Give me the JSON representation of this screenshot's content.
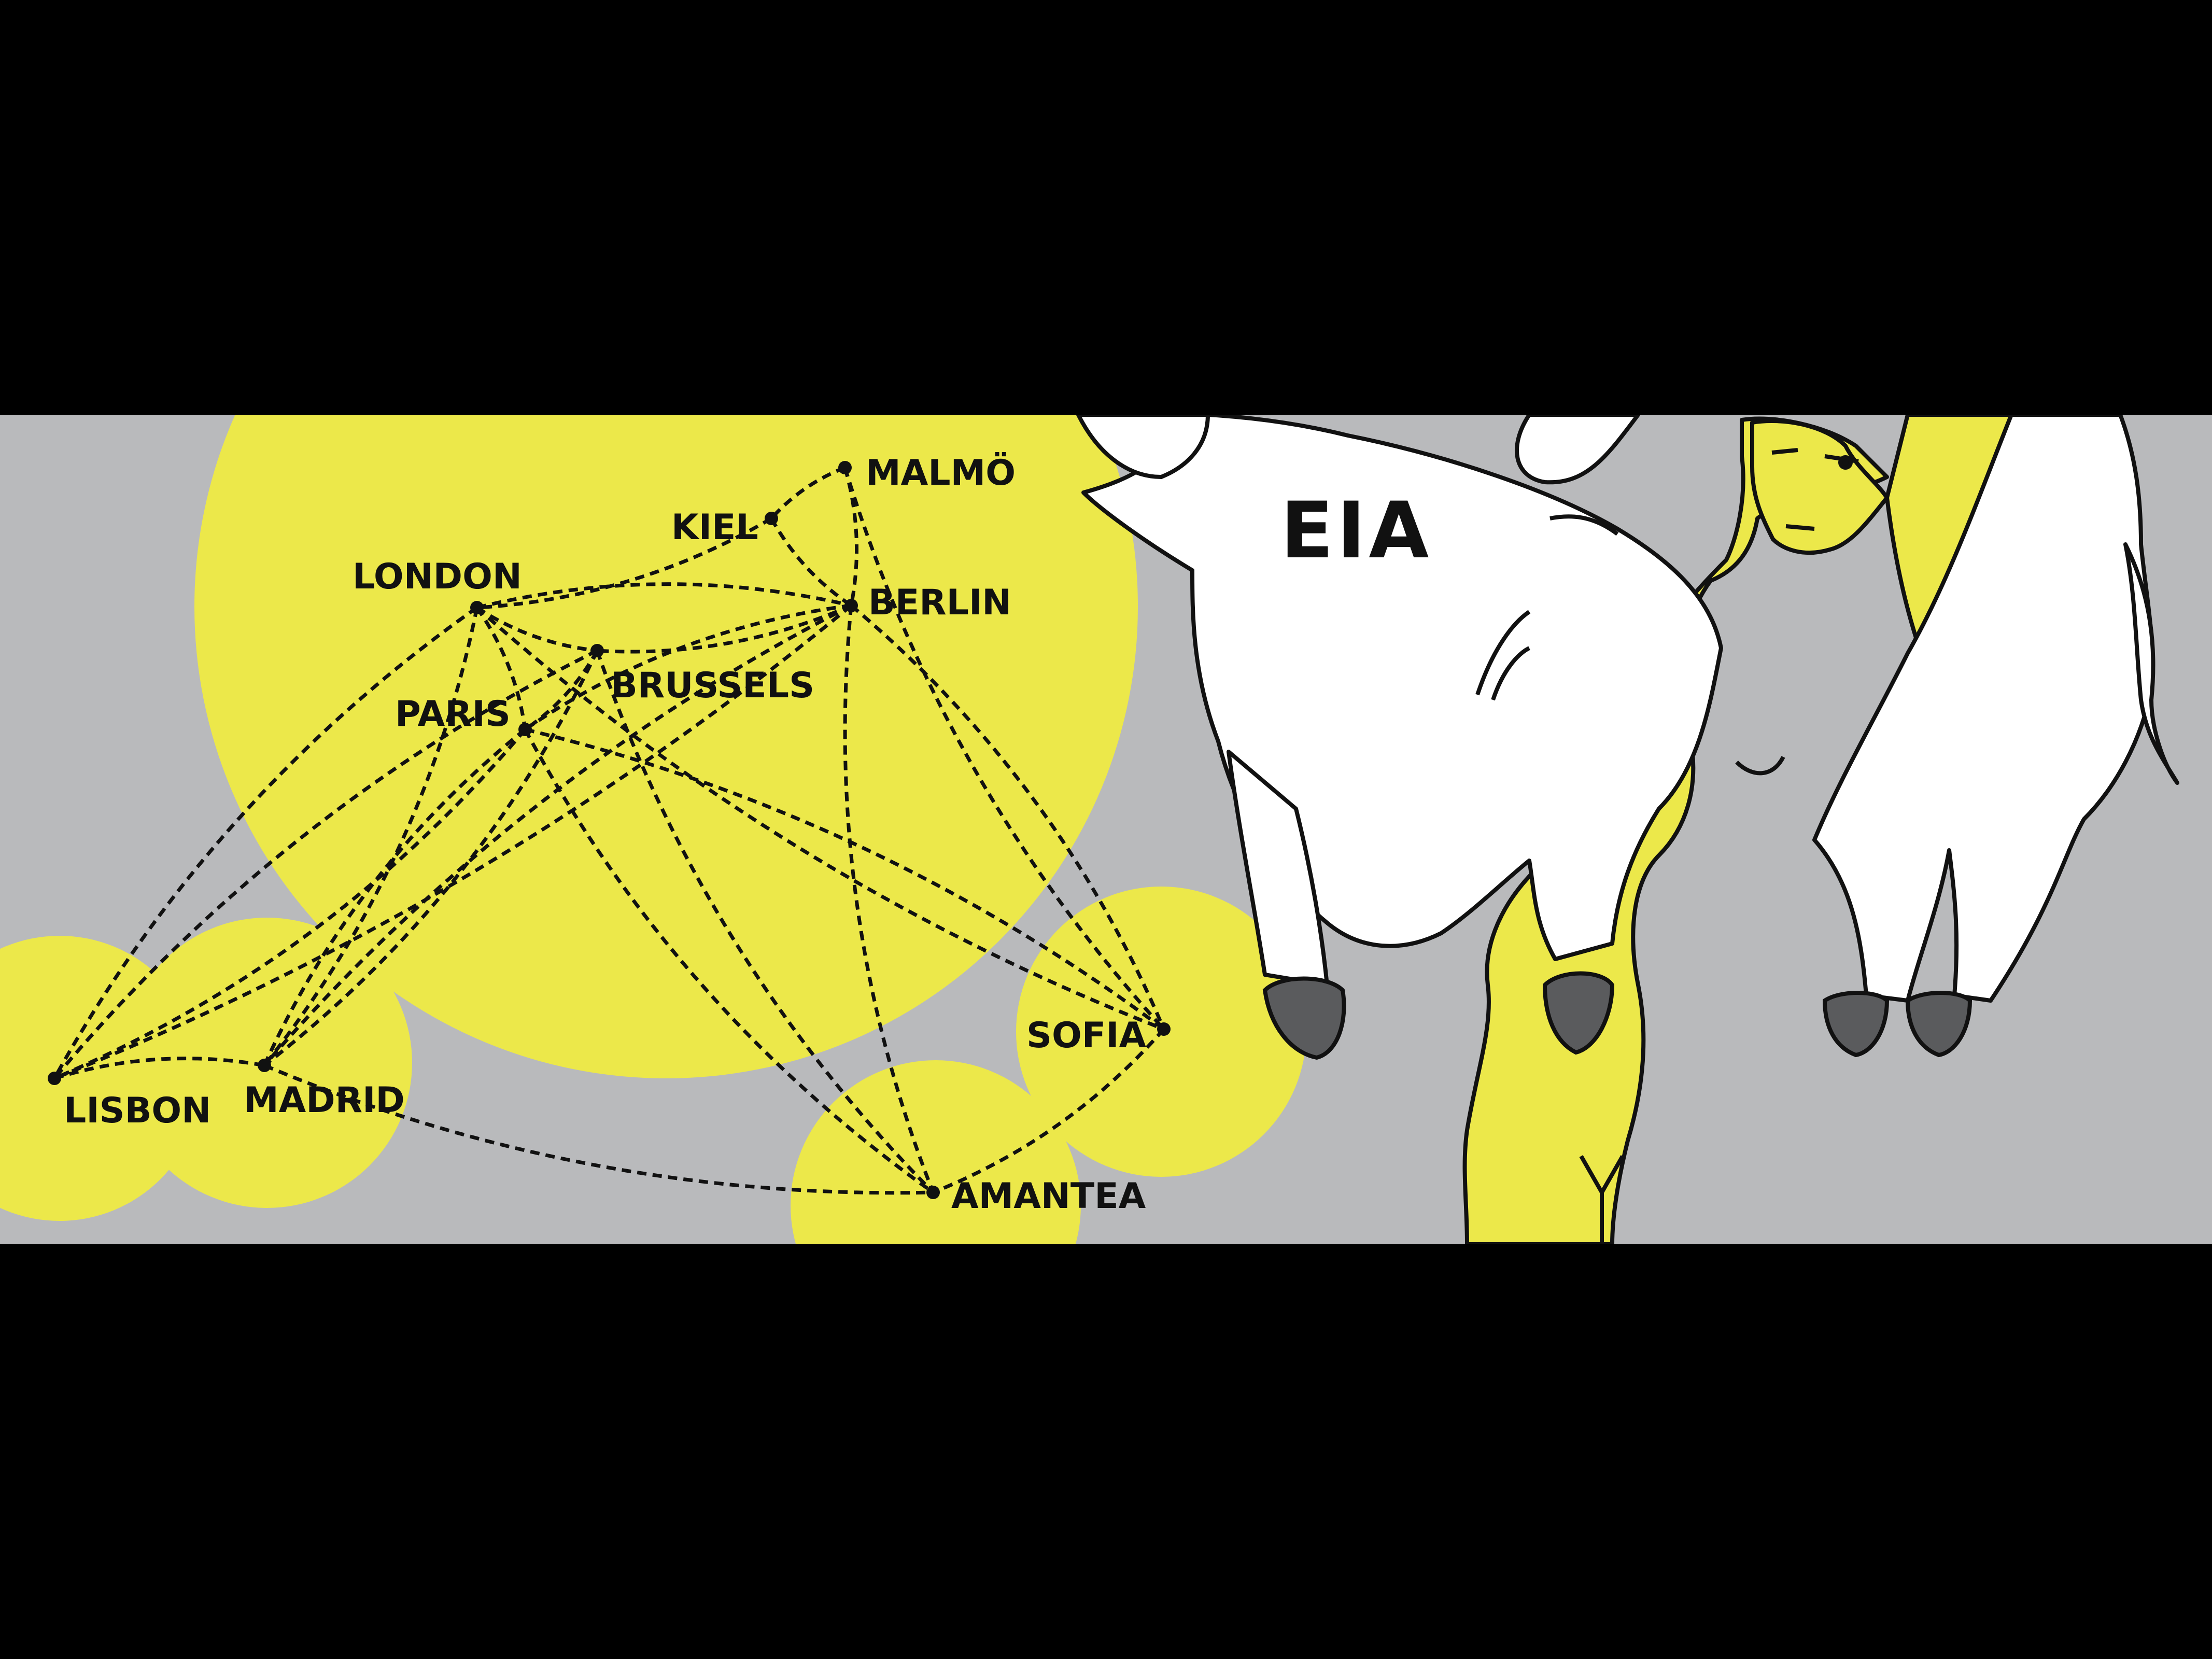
{
  "colors": {
    "background": "#000000",
    "panel": "#b9babc",
    "highlight": "#ece84a",
    "ink": "#111111",
    "bull": "#ffffff",
    "hoof": "#5a5b5d"
  },
  "stamp_text": "EIA",
  "cities": [
    {
      "id": "malmo",
      "name": "MALMÖ"
    },
    {
      "id": "kiel",
      "name": "KIEL"
    },
    {
      "id": "london",
      "name": "LONDON"
    },
    {
      "id": "berlin",
      "name": "BERLIN"
    },
    {
      "id": "brussels",
      "name": "BRUSSELS"
    },
    {
      "id": "paris",
      "name": "PARIS"
    },
    {
      "id": "sofia",
      "name": "SOFIA"
    },
    {
      "id": "lisbon",
      "name": "LISBON"
    },
    {
      "id": "madrid",
      "name": "MADRID"
    },
    {
      "id": "amantea",
      "name": "AMANTEA"
    }
  ],
  "routes": [
    [
      "malmo",
      "kiel"
    ],
    [
      "malmo",
      "berlin"
    ],
    [
      "malmo",
      "sofia"
    ],
    [
      "kiel",
      "london"
    ],
    [
      "kiel",
      "berlin"
    ],
    [
      "london",
      "berlin"
    ],
    [
      "london",
      "brussels"
    ],
    [
      "london",
      "paris"
    ],
    [
      "london",
      "lisbon"
    ],
    [
      "london",
      "madrid"
    ],
    [
      "london",
      "sofia"
    ],
    [
      "berlin",
      "brussels"
    ],
    [
      "berlin",
      "paris"
    ],
    [
      "berlin",
      "lisbon"
    ],
    [
      "berlin",
      "madrid"
    ],
    [
      "berlin",
      "sofia"
    ],
    [
      "berlin",
      "amantea"
    ],
    [
      "brussels",
      "paris"
    ],
    [
      "brussels",
      "lisbon"
    ],
    [
      "brussels",
      "madrid"
    ],
    [
      "brussels",
      "amantea"
    ],
    [
      "paris",
      "lisbon"
    ],
    [
      "paris",
      "madrid"
    ],
    [
      "paris",
      "sofia"
    ],
    [
      "paris",
      "amantea"
    ],
    [
      "lisbon",
      "madrid"
    ],
    [
      "madrid",
      "amantea"
    ],
    [
      "sofia",
      "amantea"
    ]
  ]
}
